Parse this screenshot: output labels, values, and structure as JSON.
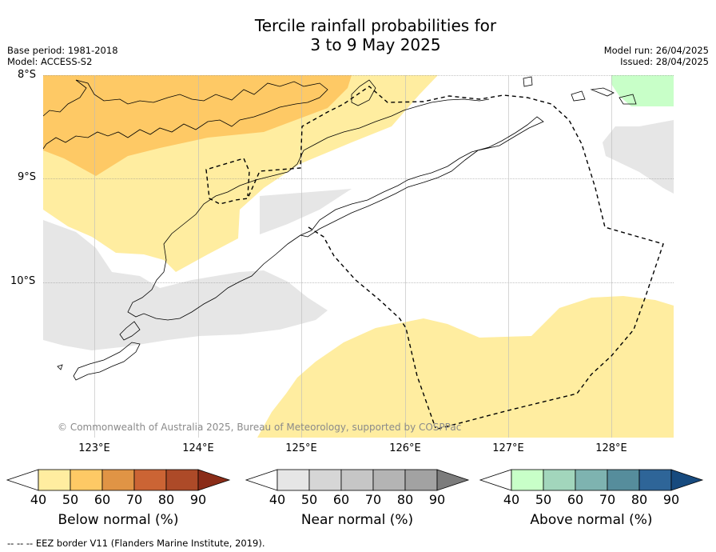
{
  "title_line1": "Tercile rainfall probabilities for",
  "title_line2": "3 to 9 May 2025",
  "meta_left": [
    "Base period: 1981-2018",
    "Model: ACCESS-S2"
  ],
  "meta_right": [
    "Model run: 26/04/2025",
    "Issued: 28/04/2025"
  ],
  "lat_labels": [
    "8°S",
    "9°S",
    "10°S"
  ],
  "lon_labels": [
    "123°E",
    "124°E",
    "125°E",
    "126°E",
    "127°E",
    "128°E"
  ],
  "copyright": "© Commonwealth of Australia 2025, Bureau of Meteorology, supported by COSPPac",
  "legend": [
    {
      "label": "Below normal (%)",
      "ticks": [
        "40",
        "50",
        "60",
        "70",
        "80",
        "90"
      ],
      "colors": [
        "#ffffff",
        "#ffeda0",
        "#fec965",
        "#e09445",
        "#cb6434",
        "#ad4a28",
        "#8a2c18"
      ]
    },
    {
      "label": "Near normal (%)",
      "ticks": [
        "40",
        "50",
        "60",
        "70",
        "80",
        "90"
      ],
      "colors": [
        "#ffffff",
        "#e6e6e6",
        "#d6d6d6",
        "#c6c6c6",
        "#b4b4b4",
        "#a2a2a2",
        "#7c7c7c"
      ]
    },
    {
      "label": "Above normal (%)",
      "ticks": [
        "40",
        "50",
        "60",
        "70",
        "80",
        "90"
      ],
      "colors": [
        "#ffffff",
        "#c8ffc8",
        "#a2d6bc",
        "#7eb3b0",
        "#568d9c",
        "#2e6598",
        "#174a7e"
      ]
    }
  ],
  "footer": "--  --  -- EEZ border V11 (Flanders Marine Institute, 2019).",
  "colors": {
    "below_light": "#ffeda0",
    "below_mid": "#fec965",
    "near": "#e6e6e6",
    "above": "#c8ffc8",
    "grid": "#888888"
  }
}
